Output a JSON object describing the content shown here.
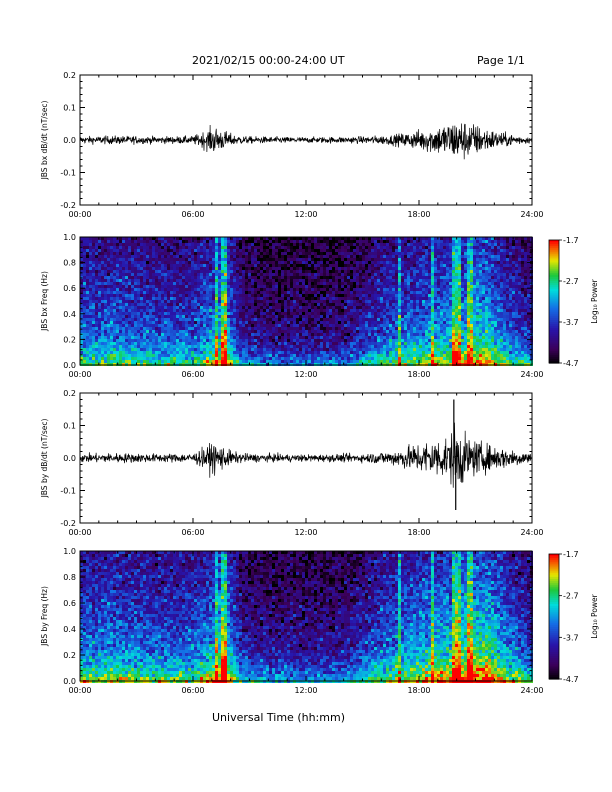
{
  "header": {
    "title": "2021/02/15  00:00-24:00 UT",
    "page": "Page 1/1"
  },
  "xaxis": {
    "label": "Universal Time (hh:mm)",
    "range_hours": [
      0,
      24
    ],
    "ticks": [
      {
        "v": 0,
        "label": "00:00"
      },
      {
        "v": 6,
        "label": "06:00"
      },
      {
        "v": 12,
        "label": "12:00"
      },
      {
        "v": 18,
        "label": "18:00"
      },
      {
        "v": 24,
        "label": "24:00"
      }
    ]
  },
  "colorbar": {
    "label": "Log₁₀ Power",
    "range": [
      -4.7,
      -1.7
    ],
    "ticks": [
      {
        "v": -1.7,
        "label": "-1.7"
      },
      {
        "v": -2.7,
        "label": "-2.7"
      },
      {
        "v": -3.7,
        "label": "-3.7"
      },
      {
        "v": -4.7,
        "label": "-4.7"
      }
    ]
  },
  "chart_data": [
    {
      "type": "line",
      "ylabel": "JBS bx dB/dt (nT/sec)",
      "ylim": [
        -0.2,
        0.2
      ],
      "yticks": [
        {
          "v": 0.2,
          "label": "0.2"
        },
        {
          "v": 0.1,
          "label": "0.1"
        },
        {
          "v": 0.0,
          "label": "0.0"
        },
        {
          "v": -0.1,
          "label": "-0.1"
        },
        {
          "v": -0.2,
          "label": "-0.2"
        }
      ],
      "envelope": {
        "time_h": [
          0,
          2,
          4,
          6,
          6.8,
          7.1,
          7.5,
          8.2,
          9,
          12,
          15,
          16.5,
          17.5,
          18.5,
          19.5,
          20,
          20.5,
          21.5,
          22.5,
          24
        ],
        "amplitude": [
          0.01,
          0.012,
          0.01,
          0.011,
          0.03,
          0.04,
          0.03,
          0.014,
          0.01,
          0.008,
          0.01,
          0.014,
          0.022,
          0.035,
          0.05,
          0.06,
          0.055,
          0.035,
          0.02,
          0.008
        ]
      }
    },
    {
      "type": "heatmap",
      "ylabel": "JBS bx Freq (Hz)",
      "ylim": [
        0.0,
        1.0
      ],
      "yticks": [
        {
          "v": 1.0,
          "label": "1.0"
        },
        {
          "v": 0.8,
          "label": "0.8"
        },
        {
          "v": 0.6,
          "label": "0.6"
        },
        {
          "v": 0.4,
          "label": "0.4"
        },
        {
          "v": 0.2,
          "label": "0.2"
        },
        {
          "v": 0.0,
          "label": "0.0"
        }
      ],
      "activity": {
        "time_h": [
          0,
          2,
          4,
          6,
          7.2,
          7.6,
          8.5,
          10,
          12,
          14,
          16,
          18,
          20,
          21.5,
          22.5,
          24
        ],
        "level": [
          0.55,
          0.55,
          0.5,
          0.5,
          0.65,
          0.75,
          0.35,
          0.3,
          0.28,
          0.3,
          0.5,
          0.6,
          0.7,
          0.75,
          0.55,
          0.4
        ]
      },
      "bright_columns_h": [
        7.2,
        7.6,
        16.9,
        18.6,
        19.8,
        20.0,
        20.6
      ]
    },
    {
      "type": "line",
      "ylabel": "JBS by dB/dt (nT/sec)",
      "ylim": [
        -0.2,
        0.2
      ],
      "yticks": [
        {
          "v": 0.2,
          "label": "0.2"
        },
        {
          "v": 0.1,
          "label": "0.1"
        },
        {
          "v": 0.0,
          "label": "0.0"
        },
        {
          "v": -0.1,
          "label": "-0.1"
        },
        {
          "v": -0.2,
          "label": "-0.2"
        }
      ],
      "envelope": {
        "time_h": [
          0,
          2,
          4,
          6,
          6.8,
          7.1,
          7.5,
          8.2,
          9,
          12,
          15,
          16.5,
          17.5,
          18.5,
          19.5,
          20,
          20.5,
          21.5,
          22.5,
          24
        ],
        "amplitude": [
          0.012,
          0.014,
          0.012,
          0.013,
          0.035,
          0.045,
          0.035,
          0.016,
          0.012,
          0.01,
          0.012,
          0.02,
          0.035,
          0.05,
          0.06,
          0.1,
          0.06,
          0.04,
          0.03,
          0.015
        ]
      },
      "spikes": [
        {
          "time_h": 19.85,
          "value": 0.18
        },
        {
          "time_h": 19.95,
          "value": -0.16
        }
      ]
    },
    {
      "type": "heatmap",
      "ylabel": "JBS by Freq (Hz)",
      "ylim": [
        0.0,
        1.0
      ],
      "yticks": [
        {
          "v": 1.0,
          "label": "1.0"
        },
        {
          "v": 0.8,
          "label": "0.8"
        },
        {
          "v": 0.6,
          "label": "0.6"
        },
        {
          "v": 0.4,
          "label": "0.4"
        },
        {
          "v": 0.2,
          "label": "0.2"
        },
        {
          "v": 0.0,
          "label": "0.0"
        }
      ],
      "activity": {
        "time_h": [
          0,
          2,
          4,
          6,
          7.2,
          7.6,
          8.5,
          10,
          12,
          14,
          16,
          18,
          20,
          21.5,
          22.5,
          24
        ],
        "level": [
          0.6,
          0.6,
          0.55,
          0.55,
          0.7,
          0.8,
          0.4,
          0.35,
          0.33,
          0.35,
          0.55,
          0.68,
          0.78,
          0.85,
          0.65,
          0.45
        ]
      },
      "bright_columns_h": [
        7.2,
        7.6,
        16.9,
        18.6,
        19.8,
        20.0,
        20.6
      ]
    }
  ]
}
